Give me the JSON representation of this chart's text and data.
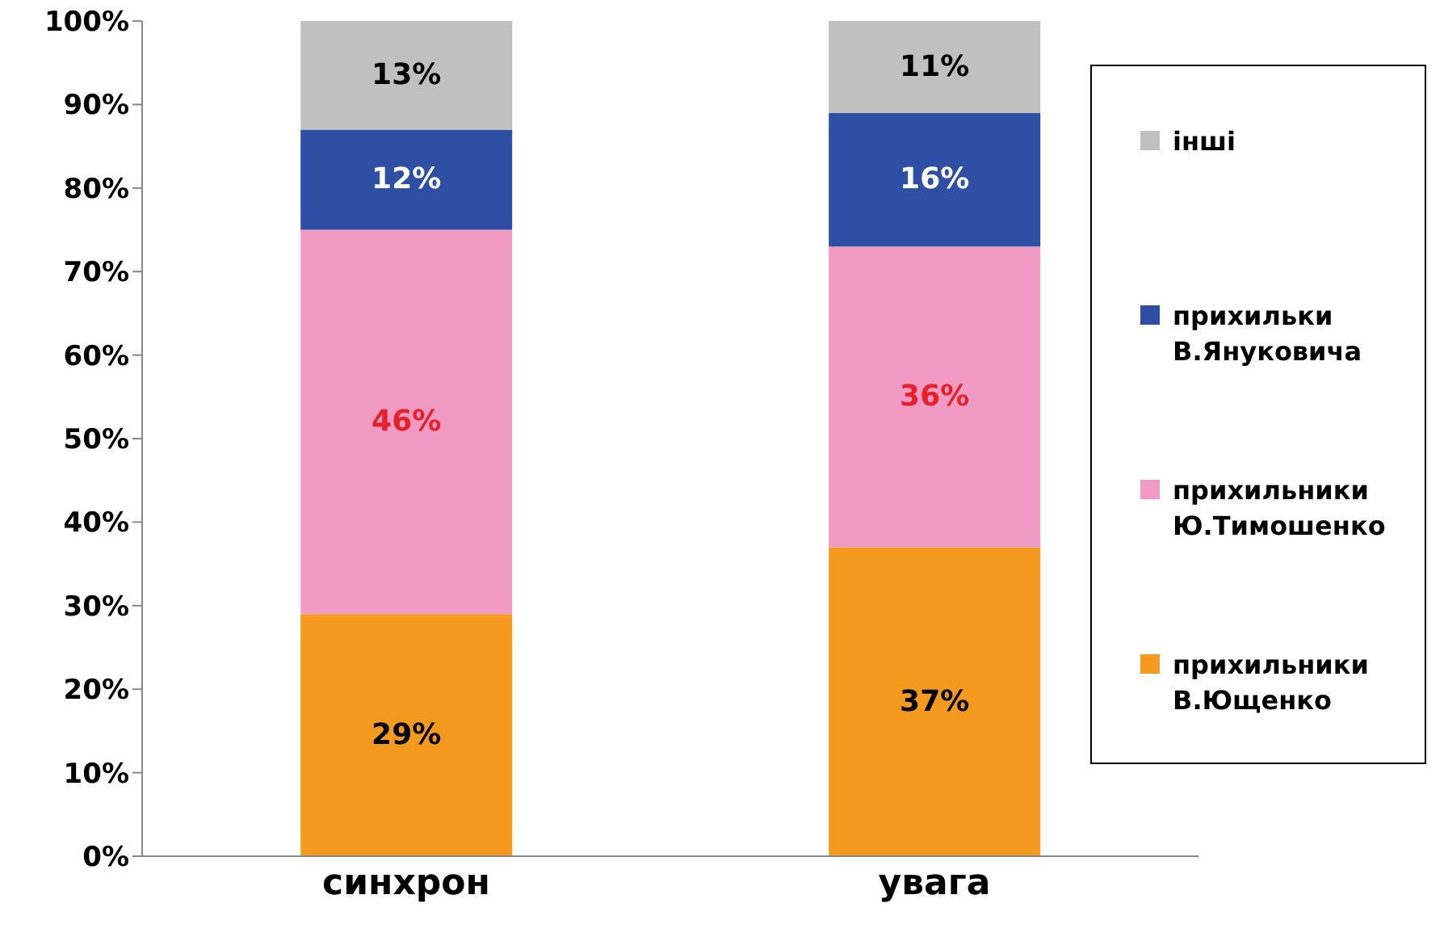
{
  "chart_data": {
    "type": "bar",
    "stacked": true,
    "categories": [
      "синхрон",
      "увага"
    ],
    "series": [
      {
        "name": "прихильники В.Ющенко",
        "color": "#f39a1f",
        "values": [
          29,
          37
        ],
        "value_labels": [
          "29%",
          "37%"
        ]
      },
      {
        "name": "прихильники Ю.Тимошенко",
        "color": "#f19bc4",
        "values": [
          46,
          36
        ],
        "value_labels": [
          "46%",
          "36%"
        ]
      },
      {
        "name": "прихильки В.Януковича",
        "color": "#2e4fa3",
        "values": [
          12,
          16
        ],
        "value_labels": [
          "12%",
          "16%"
        ]
      },
      {
        "name": "інші",
        "color": "#c0c0c0",
        "values": [
          13,
          11
        ],
        "value_labels": [
          "13%",
          "11%"
        ]
      }
    ],
    "ylim": [
      0,
      100
    ],
    "yticks": [
      {
        "value": 0,
        "label": "0%"
      },
      {
        "value": 10,
        "label": "10%"
      },
      {
        "value": 20,
        "label": "20%"
      },
      {
        "value": 30,
        "label": "30%"
      },
      {
        "value": 40,
        "label": "40%"
      },
      {
        "value": 50,
        "label": "50%"
      },
      {
        "value": 60,
        "label": "60%"
      },
      {
        "value": 70,
        "label": "70%"
      },
      {
        "value": 80,
        "label": "80%"
      },
      {
        "value": 90,
        "label": "90%"
      },
      {
        "value": 100,
        "label": "100%"
      }
    ],
    "grid": false,
    "legend": "right"
  }
}
